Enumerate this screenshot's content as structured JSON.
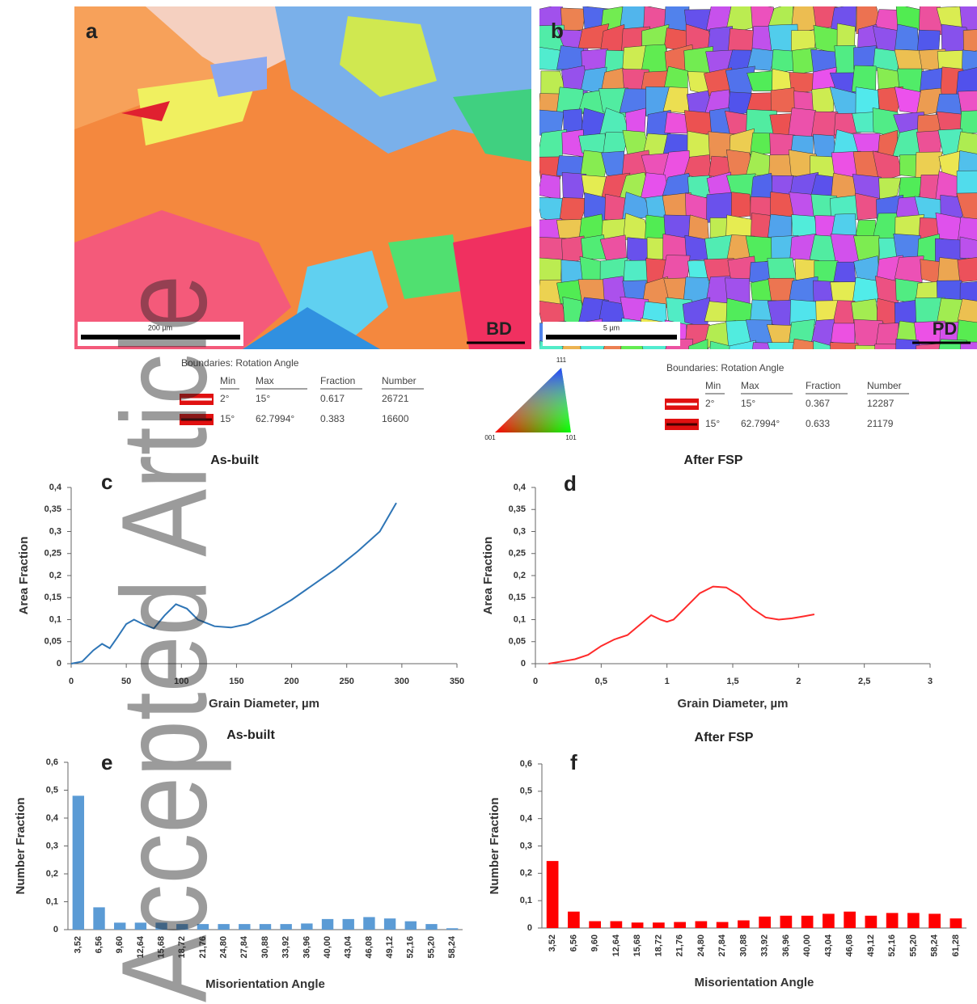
{
  "watermark": "Accepted Article",
  "maps": [
    {
      "label": "a",
      "scale_bar": "200 µm",
      "direction": "BD",
      "boundaries": {
        "title": "Boundaries: Rotation Angle",
        "columns": [
          "Min",
          "Max",
          "Fraction",
          "Number"
        ],
        "rows": [
          [
            "2°",
            "15°",
            0.617,
            26721
          ],
          [
            "15°",
            "62.7994°",
            0.383,
            16600
          ]
        ]
      }
    },
    {
      "label": "b",
      "scale_bar": "5 µm",
      "direction": "PD",
      "boundaries": {
        "title": "Boundaries: Rotation Angle",
        "columns": [
          "Min",
          "Max",
          "Fraction",
          "Number"
        ],
        "rows": [
          [
            "2°",
            "15°",
            0.367,
            12287
          ],
          [
            "15°",
            "62.7994°",
            0.633,
            21179
          ]
        ]
      }
    }
  ],
  "ipf_legend": {
    "top": "111",
    "left": "001",
    "right": "101"
  },
  "chart_data": [
    {
      "type": "line",
      "label": "c",
      "title": "As-built",
      "x_label": "Grain Diameter, µm",
      "y_label": "Area Fraction",
      "color": "#2e75b6",
      "x": [
        0,
        10,
        20,
        28,
        35,
        42,
        50,
        57,
        65,
        75,
        85,
        95,
        105,
        115,
        130,
        145,
        160,
        180,
        200,
        220,
        240,
        260,
        280,
        295
      ],
      "values": [
        0,
        0.005,
        0.03,
        0.045,
        0.035,
        0.06,
        0.09,
        0.1,
        0.09,
        0.08,
        0.11,
        0.135,
        0.125,
        0.1,
        0.085,
        0.082,
        0.09,
        0.115,
        0.145,
        0.18,
        0.215,
        0.255,
        0.3,
        0.365
      ],
      "xlim": [
        0,
        350
      ],
      "xticks": [
        0,
        50,
        100,
        150,
        200,
        250,
        300,
        350
      ],
      "ylim": [
        0,
        0.4
      ],
      "yticks": [
        0,
        {
          "value": 0.05,
          "label": "0,05"
        },
        {
          "value": 0.1,
          "label": "0,1"
        },
        {
          "value": 0.15,
          "label": "0,15"
        },
        {
          "value": 0.2,
          "label": "0,2"
        },
        {
          "value": 0.25,
          "label": "0,25"
        },
        {
          "value": 0.3,
          "label": "0,3"
        },
        {
          "value": 0.35,
          "label": "0,35"
        },
        {
          "value": 0.4,
          "label": "0,4"
        }
      ]
    },
    {
      "type": "line",
      "label": "d",
      "title": "After FSP",
      "x_label": "Grain Diameter, µm",
      "y_label": "Area Fraction",
      "color": "#ff2a2a",
      "x": [
        0.1,
        0.2,
        0.3,
        0.4,
        0.5,
        0.6,
        0.7,
        0.8,
        0.88,
        0.95,
        1.0,
        1.05,
        1.15,
        1.25,
        1.35,
        1.45,
        1.55,
        1.65,
        1.75,
        1.85,
        1.95,
        2.05,
        2.12
      ],
      "values": [
        0,
        0.005,
        0.01,
        0.02,
        0.04,
        0.055,
        0.065,
        0.09,
        0.11,
        0.1,
        0.095,
        0.1,
        0.13,
        0.16,
        0.175,
        0.173,
        0.155,
        0.125,
        0.105,
        0.1,
        0.103,
        0.108,
        0.112
      ],
      "xlim": [
        0,
        3
      ],
      "xticks": [
        0,
        {
          "value": 0.5,
          "label": "0,5"
        },
        1,
        {
          "value": 1.5,
          "label": "1,5"
        },
        2,
        {
          "value": 2.5,
          "label": "2,5"
        },
        3
      ],
      "ylim": [
        0,
        0.4
      ],
      "yticks": [
        0,
        {
          "value": 0.05,
          "label": "0,05"
        },
        {
          "value": 0.1,
          "label": "0,1"
        },
        {
          "value": 0.15,
          "label": "0,15"
        },
        {
          "value": 0.2,
          "label": "0,2"
        },
        {
          "value": 0.25,
          "label": "0,25"
        },
        {
          "value": 0.3,
          "label": "0,3"
        },
        {
          "value": 0.35,
          "label": "0,35"
        },
        {
          "value": 0.4,
          "label": "0,4"
        }
      ]
    },
    {
      "type": "bar",
      "label": "e",
      "title": "As-built",
      "x_label": "Misorientation Angle",
      "y_label": "Number Fraction",
      "color": "#5b9bd5",
      "categories": [
        "3,52",
        "6,56",
        "9,60",
        "12,64",
        "15,68",
        "18,72",
        "21,76",
        "24,80",
        "27,84",
        "30,88",
        "33,92",
        "36,96",
        "40,00",
        "43,04",
        "46,08",
        "49,12",
        "52,16",
        "55,20",
        "58,24"
      ],
      "values": [
        0.48,
        0.08,
        0.025,
        0.025,
        0.025,
        0.02,
        0.02,
        0.02,
        0.02,
        0.02,
        0.02,
        0.022,
        0.038,
        0.038,
        0.045,
        0.04,
        0.03,
        0.02,
        0.005
      ],
      "ylim": [
        0,
        0.6
      ],
      "yticks": [
        0,
        {
          "value": 0.1,
          "label": "0,1"
        },
        {
          "value": 0.2,
          "label": "0,2"
        },
        {
          "value": 0.3,
          "label": "0,3"
        },
        {
          "value": 0.4,
          "label": "0,4"
        },
        {
          "value": 0.5,
          "label": "0,5"
        },
        {
          "value": 0.6,
          "label": "0,6"
        }
      ]
    },
    {
      "type": "bar",
      "label": "f",
      "title": "After FSP",
      "x_label": "Misorientation Angle",
      "y_label": "Number Fraction",
      "color": "#ff0000",
      "categories": [
        "3,52",
        "6,56",
        "9,60",
        "12,64",
        "15,68",
        "18,72",
        "21,76",
        "24,80",
        "27,84",
        "30,88",
        "33,92",
        "36,96",
        "40,00",
        "43,04",
        "46,08",
        "49,12",
        "52,16",
        "55,20",
        "58,24",
        "61,28"
      ],
      "values": [
        0.245,
        0.06,
        0.025,
        0.025,
        0.02,
        0.02,
        0.022,
        0.025,
        0.022,
        0.028,
        0.042,
        0.045,
        0.045,
        0.052,
        0.06,
        0.045,
        0.055,
        0.055,
        0.052,
        0.035
      ],
      "ylim": [
        0,
        0.6
      ],
      "yticks": [
        0,
        {
          "value": 0.1,
          "label": "0,1"
        },
        {
          "value": 0.2,
          "label": "0,2"
        },
        {
          "value": 0.3,
          "label": "0,3"
        },
        {
          "value": 0.4,
          "label": "0,4"
        },
        {
          "value": 0.5,
          "label": "0,5"
        },
        {
          "value": 0.6,
          "label": "0,6"
        }
      ]
    }
  ]
}
